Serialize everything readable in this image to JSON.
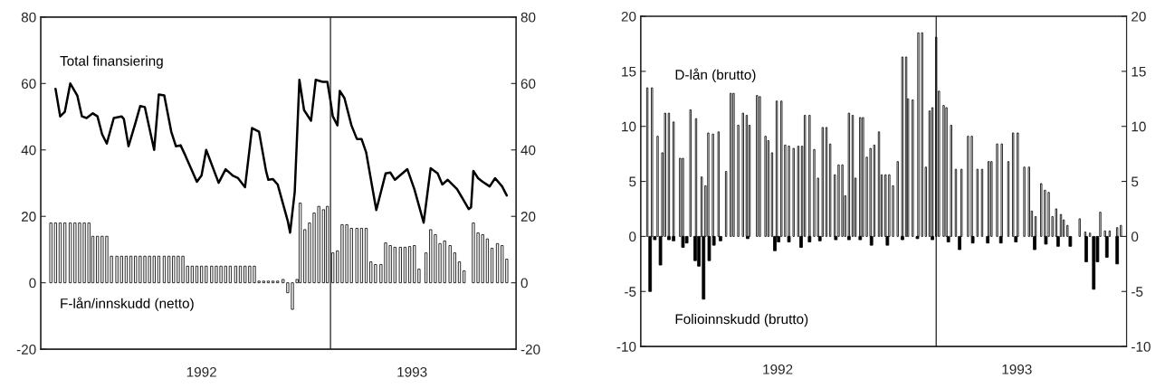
{
  "chart_data": [
    {
      "type": "bar",
      "xlim": [
        "1991-12-25",
        "1993-08-28"
      ],
      "xticks": [
        {
          "value": "1992-07-19",
          "label": "1992"
        },
        {
          "value": "1993-04-16",
          "label": "1993"
        }
      ],
      "ylim": [
        -20,
        80
      ],
      "yticks": [
        -20,
        0,
        20,
        40,
        60,
        80
      ],
      "y2lim": [
        -20,
        80
      ],
      "y2ticks": [
        -20,
        0,
        20,
        40,
        60,
        80
      ],
      "grid": false,
      "legend": false,
      "ref_lines": [
        {
          "axis": "x",
          "value": "1993-01-01"
        }
      ],
      "series": [
        {
          "name": "Total finansiering",
          "type": "line",
          "color": "#000000",
          "x": [
            "1992-01-13",
            "1992-01-19",
            "1992-01-25",
            "1992-02-01",
            "1992-02-10",
            "1992-02-16",
            "1992-02-22",
            "1992-03-01",
            "1992-03-07",
            "1992-03-13",
            "1992-03-19",
            "1992-03-28",
            "1992-04-07",
            "1992-04-10",
            "1992-04-16",
            "1992-04-25",
            "1992-05-01",
            "1992-05-07",
            "1992-05-19",
            "1992-05-25",
            "1992-06-01",
            "1992-06-10",
            "1992-06-16",
            "1992-06-22",
            "1992-06-28",
            "1992-07-13",
            "1992-07-19",
            "1992-07-25",
            "1992-08-10",
            "1992-08-19",
            "1992-08-28",
            "1992-09-04",
            "1992-09-13",
            "1992-09-22",
            "1992-10-01",
            "1992-10-10",
            "1992-10-13",
            "1992-10-19",
            "1992-10-25",
            "1992-11-07",
            "1992-11-10",
            "1992-11-16",
            "1992-11-22",
            "1992-11-28",
            "1992-12-07",
            "1992-12-13",
            "1992-12-22",
            "1992-12-28",
            "1993-01-01",
            "1993-01-04",
            "1993-01-10",
            "1993-01-13",
            "1993-01-19",
            "1993-01-28",
            "1993-02-04",
            "1993-02-10",
            "1993-02-16",
            "1993-03-01",
            "1993-03-13",
            "1993-03-19",
            "1993-03-25",
            "1993-04-10",
            "1993-04-19",
            "1993-05-01",
            "1993-05-10",
            "1993-05-19",
            "1993-05-25",
            "1993-06-01",
            "1993-06-13",
            "1993-06-28",
            "1993-07-01",
            "1993-07-04",
            "1993-07-10",
            "1993-07-16",
            "1993-07-25",
            "1993-08-01",
            "1993-08-10",
            "1993-08-16"
          ],
          "values": [
            58.4,
            50.1,
            51.5,
            60,
            56.4,
            50.1,
            49.6,
            51,
            50.1,
            44.7,
            41.9,
            49.6,
            50.1,
            49.3,
            41.1,
            48.2,
            53.2,
            52.9,
            40,
            56.7,
            56.4,
            45.5,
            41.1,
            41.4,
            38.4,
            30.4,
            32.3,
            40,
            30.1,
            34.2,
            32.3,
            31.5,
            28.8,
            46.6,
            45.5,
            33.7,
            31,
            31.2,
            29.6,
            18.6,
            15.1,
            27.4,
            61.1,
            52,
            48.8,
            61.1,
            60.5,
            60.5,
            54.8,
            50.1,
            47.4,
            57.8,
            55.6,
            47.4,
            43.3,
            43.3,
            39.2,
            21.9,
            32.9,
            33.2,
            31,
            34.2,
            28.2,
            18.1,
            34.5,
            32.9,
            29.6,
            31,
            28.2,
            22.2,
            22.7,
            33.7,
            31.5,
            30.4,
            29,
            31.5,
            29,
            26.3
          ]
        },
        {
          "name": "F-lån/innskudd (netto)",
          "color": "#ffffff",
          "x": [
            "1992-01-07",
            "1992-01-13",
            "1992-01-19",
            "1992-01-25",
            "1992-02-01",
            "1992-02-07",
            "1992-02-13",
            "1992-02-19",
            "1992-02-25",
            "1992-03-01",
            "1992-03-07",
            "1992-03-13",
            "1992-03-19",
            "1992-03-25",
            "1992-04-01",
            "1992-04-07",
            "1992-04-13",
            "1992-04-19",
            "1992-04-25",
            "1992-05-01",
            "1992-05-07",
            "1992-05-13",
            "1992-05-19",
            "1992-05-25",
            "1992-06-01",
            "1992-06-07",
            "1992-06-13",
            "1992-06-19",
            "1992-06-25",
            "1992-07-01",
            "1992-07-07",
            "1992-07-13",
            "1992-07-19",
            "1992-07-25",
            "1992-08-01",
            "1992-08-07",
            "1992-08-13",
            "1992-08-19",
            "1992-08-25",
            "1992-09-01",
            "1992-09-07",
            "1992-09-13",
            "1992-09-19",
            "1992-09-25",
            "1992-10-01",
            "1992-10-07",
            "1992-10-13",
            "1992-10-19",
            "1992-10-25",
            "1992-11-01",
            "1992-11-07",
            "1992-11-13",
            "1992-11-19",
            "1992-11-23",
            "1992-11-29",
            "1992-12-05",
            "1992-12-11",
            "1992-12-17",
            "1992-12-23",
            "1992-12-28",
            "1993-01-04",
            "1993-01-10",
            "1993-01-16",
            "1993-01-22",
            "1993-01-28",
            "1993-02-04",
            "1993-02-10",
            "1993-02-16",
            "1993-02-22",
            "1993-02-28",
            "1993-03-07",
            "1993-03-13",
            "1993-03-19",
            "1993-03-25",
            "1993-04-01",
            "1993-04-07",
            "1993-04-13",
            "1993-04-19",
            "1993-04-25",
            "1993-05-04",
            "1993-05-10",
            "1993-05-16",
            "1993-05-22",
            "1993-05-28",
            "1993-06-04",
            "1993-06-10",
            "1993-06-16",
            "1993-06-22",
            "1993-07-04",
            "1993-07-10",
            "1993-07-16",
            "1993-07-22",
            "1993-07-28",
            "1993-08-04",
            "1993-08-10",
            "1993-08-16"
          ],
          "values": [
            18,
            18,
            18,
            18,
            18,
            18,
            18,
            18,
            18,
            14,
            14,
            14,
            14,
            8,
            8,
            8,
            8,
            8,
            8,
            8,
            8,
            8,
            8,
            8,
            8,
            8,
            8,
            8,
            8,
            5,
            5,
            5,
            5,
            5,
            5,
            5,
            5,
            5,
            5,
            5,
            5,
            5,
            5,
            5,
            0.5,
            0.5,
            0.5,
            0.5,
            0.5,
            1,
            -3,
            -8,
            1,
            24,
            16,
            18,
            21,
            23,
            22,
            23,
            9,
            9.6,
            17.5,
            17.5,
            16.4,
            16.4,
            16.4,
            16.4,
            6.3,
            5.5,
            5.5,
            12,
            11.2,
            10.7,
            10.7,
            10.7,
            10.9,
            11.2,
            4.1,
            9,
            16,
            14.5,
            11.8,
            12.6,
            11.2,
            9,
            6.3,
            3.6,
            18,
            15,
            14.5,
            13.2,
            10.4,
            11.8,
            11.2,
            7.1
          ]
        }
      ]
    },
    {
      "type": "bar",
      "xlim": [
        "1992-02-21",
        "1993-07-23"
      ],
      "xticks": [
        {
          "value": "1992-07-16",
          "label": "1992"
        },
        {
          "value": "1993-03-28",
          "label": "1993"
        }
      ],
      "ylim": [
        -10,
        20
      ],
      "yticks": [
        -10,
        -5,
        0,
        5,
        10,
        15,
        20
      ],
      "y2lim": [
        -10,
        20
      ],
      "y2ticks": [
        -10,
        -5,
        0,
        5,
        10,
        15,
        20
      ],
      "grid": false,
      "legend": false,
      "ref_lines": [
        {
          "axis": "x",
          "value": "1993-01-01"
        }
      ],
      "series": [
        {
          "name": "D-lån (brutto)",
          "color": "#ffffff",
          "x": [
            "1992-02-28",
            "1992-03-04",
            "1992-03-10",
            "1992-03-15",
            "1992-03-18",
            "1992-03-22",
            "1992-03-27",
            "1992-04-03",
            "1992-04-06",
            "1992-04-14",
            "1992-04-20",
            "1992-04-26",
            "1992-04-30",
            "1992-05-03",
            "1992-05-08",
            "1992-05-14",
            "1992-05-22",
            "1992-05-27",
            "1992-05-30",
            "1992-06-04",
            "1992-06-09",
            "1992-06-13",
            "1992-06-16",
            "1992-06-24",
            "1992-06-27",
            "1992-07-03",
            "1992-07-06",
            "1992-07-10",
            "1992-07-15",
            "1992-07-20",
            "1992-07-24",
            "1992-07-28",
            "1992-08-02",
            "1992-08-07",
            "1992-08-11",
            "1992-08-14",
            "1992-08-19",
            "1992-08-24",
            "1992-08-28",
            "1992-09-02",
            "1992-09-06",
            "1992-09-10",
            "1992-09-15",
            "1992-09-19",
            "1992-09-23",
            "1992-09-26",
            "1992-09-30",
            "1992-10-04",
            "1992-10-07",
            "1992-10-12",
            "1992-10-15",
            "1992-10-19",
            "1992-10-23",
            "1992-10-27",
            "1992-11-01",
            "1992-11-04",
            "1992-11-08",
            "1992-11-12",
            "1992-11-16",
            "1992-11-21",
            "1992-11-26",
            "1992-11-30",
            "1992-12-02",
            "1992-12-07",
            "1992-12-13",
            "1992-12-17",
            "1992-12-21",
            "1992-12-25",
            "1992-12-28",
            "1993-01-01",
            "1993-01-04",
            "1993-01-09",
            "1993-01-12",
            "1993-01-17",
            "1993-01-22",
            "1993-01-28",
            "1993-02-04",
            "1993-02-08",
            "1993-02-14",
            "1993-02-19",
            "1993-02-26",
            "1993-03-01",
            "1993-03-07",
            "1993-03-12",
            "1993-03-19",
            "1993-03-24",
            "1993-03-29",
            "1993-04-05",
            "1993-04-10",
            "1993-04-13",
            "1993-04-17",
            "1993-04-23",
            "1993-04-27",
            "1993-05-01",
            "1993-05-05",
            "1993-05-09",
            "1993-05-14",
            "1993-05-17",
            "1993-05-21",
            "1993-06-03",
            "1993-06-09",
            "1993-06-14",
            "1993-06-25",
            "1993-06-30",
            "1993-07-05",
            "1993-07-13",
            "1993-07-17"
          ],
          "values": [
            13.5,
            13.5,
            9.1,
            7.6,
            11.2,
            11.2,
            10.4,
            7.1,
            7.1,
            11.5,
            10.7,
            5.4,
            4.6,
            9.4,
            9.3,
            9.5,
            5.9,
            13,
            13,
            10.1,
            11.2,
            11,
            10.1,
            12.8,
            12.7,
            9.1,
            8.7,
            7.6,
            12.3,
            12.3,
            8.3,
            8.2,
            8,
            8.2,
            8.2,
            11,
            11,
            7.9,
            5.3,
            9.9,
            9.9,
            8.4,
            5.6,
            6.5,
            6.5,
            3.7,
            11.2,
            11,
            5.3,
            10.8,
            10.8,
            7.2,
            8,
            8.3,
            9.5,
            5.6,
            5.6,
            5.6,
            4.6,
            6.8,
            16.3,
            16.3,
            12.5,
            12.4,
            18.5,
            18.5,
            6.3,
            11.4,
            11.7,
            18.1,
            13.2,
            11.9,
            11.7,
            10.1,
            6.1,
            6.1,
            9.1,
            9.1,
            6.1,
            6.1,
            6.8,
            6.8,
            8.4,
            8.4,
            6.8,
            9.4,
            9.4,
            6.3,
            6.3,
            2.3,
            1.8,
            4.8,
            4.2,
            4,
            1.8,
            2.5,
            2,
            1.5,
            1,
            1.6,
            0.4,
            0.3,
            2.2,
            0.5,
            0.5,
            0.8,
            1
          ]
        },
        {
          "name": "Folioinnskudd (brutto)",
          "color": "#000000",
          "x": [
            "1992-03-02",
            "1992-03-07",
            "1992-03-13",
            "1992-03-22",
            "1992-03-27",
            "1992-04-06",
            "1992-04-10",
            "1992-04-19",
            "1992-04-23",
            "1992-04-28",
            "1992-05-04",
            "1992-05-09",
            "1992-05-16",
            "1992-06-14",
            "1992-07-13",
            "1992-07-17",
            "1992-07-28",
            "1992-08-10",
            "1992-08-19",
            "1992-08-30",
            "1992-09-16",
            "1992-09-30",
            "1992-10-12",
            "1992-10-24",
            "1992-11-10",
            "1992-11-26",
            "1992-12-12",
            "1992-12-28",
            "1993-01-14",
            "1993-01-26",
            "1993-02-09",
            "1993-02-25",
            "1993-03-11",
            "1993-03-27",
            "1993-04-16",
            "1993-04-28",
            "1993-05-11",
            "1993-05-24",
            "1993-06-10",
            "1993-06-18",
            "1993-06-22",
            "1993-07-02",
            "1993-07-13"
          ],
          "values": [
            -5,
            -0.3,
            -2.6,
            -0.3,
            -0.4,
            -1,
            -0.6,
            -2.2,
            -2.7,
            -5.7,
            -2.2,
            -0.8,
            -0.4,
            -0.2,
            -1.3,
            -0.5,
            -0.5,
            -1,
            -0.5,
            -0.4,
            -0.3,
            -0.3,
            -0.3,
            -0.8,
            -0.8,
            -0.3,
            -0.2,
            -0.3,
            -0.5,
            -1.2,
            -0.6,
            -0.6,
            -0.6,
            -0.5,
            -1.2,
            -0.7,
            -0.9,
            -0.9,
            -2.3,
            -4.8,
            -2.3,
            -1.9,
            -2.5
          ]
        }
      ]
    }
  ]
}
